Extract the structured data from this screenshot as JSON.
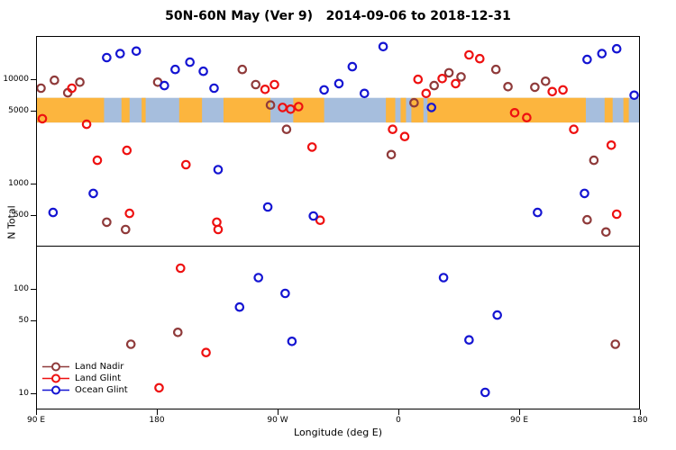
{
  "title": "50N-60N May (Ver 9)   2014-09-06 to 2018-12-31",
  "axes": {
    "y_label": "N Total",
    "x_label": "Longitude (deg E)",
    "x_ticks": [
      {
        "pos": 90,
        "label": "90 E"
      },
      {
        "pos": 180,
        "label": "180"
      },
      {
        "pos": 270,
        "label": "90 W"
      },
      {
        "pos": 360,
        "label": "0"
      },
      {
        "pos": 450,
        "label": "90 E"
      },
      {
        "pos": 540,
        "label": "180"
      }
    ],
    "y_ticks": [
      {
        "value": 10,
        "label": "10"
      },
      {
        "value": 50,
        "label": "50"
      },
      {
        "value": 100,
        "label": "100"
      },
      {
        "value": 500,
        "label": "500"
      },
      {
        "value": 1000,
        "label": "1000"
      },
      {
        "value": 5000,
        "label": "5000"
      },
      {
        "value": 10000,
        "label": "10000"
      }
    ]
  },
  "legend": {
    "items": [
      {
        "label": "Land Nadir",
        "color": "#8f3a3a"
      },
      {
        "label": "Land Glint",
        "color": "#ee1010"
      },
      {
        "label": "Ocean Glint",
        "color": "#1414d2"
      }
    ]
  },
  "chart_data": {
    "type": "scatter",
    "title": "50N-60N May (Ver 9)   2014-09-06 to 2018-12-31",
    "xlabel": "Longitude (deg E)",
    "ylabel": "N Total",
    "x_axis_note": "x axis spans 450 degrees eastward: 90E to 180 to 90W to 0 to 90E to 180; point x given as continuous degrees 90-540",
    "x_range": [
      90,
      540
    ],
    "y_range": [
      7,
      26000
    ],
    "y_scale": "log",
    "grid": false,
    "divider_value": 260,
    "map_band": {
      "value_top": 6800,
      "value_bottom": 3950,
      "ocean_color": "#a6bedd",
      "land_color": "#fcb53e",
      "land_segments": [
        [
          90,
          140
        ],
        [
          153,
          159
        ],
        [
          168,
          171
        ],
        [
          196,
          213
        ],
        [
          229,
          264
        ],
        [
          281,
          304
        ],
        [
          350,
          357
        ],
        [
          361,
          365
        ],
        [
          369,
          378
        ],
        [
          381,
          499
        ],
        [
          513,
          519
        ],
        [
          527,
          531
        ]
      ]
    },
    "series": [
      {
        "name": "Land Nadir",
        "color": "#8f3a3a",
        "points": [
          [
            93,
            8400
          ],
          [
            103,
            10000
          ],
          [
            113,
            7600
          ],
          [
            122,
            9600
          ],
          [
            142,
            440
          ],
          [
            156,
            375
          ],
          [
            180,
            9600
          ],
          [
            243,
            12700
          ],
          [
            253,
            9100
          ],
          [
            264,
            5800
          ],
          [
            276,
            3400
          ],
          [
            354,
            1950
          ],
          [
            371,
            6100
          ],
          [
            386,
            8900
          ],
          [
            397,
            11800
          ],
          [
            406,
            10800
          ],
          [
            432,
            12700
          ],
          [
            441,
            8700
          ],
          [
            461,
            8600
          ],
          [
            469,
            9800
          ],
          [
            500,
            465
          ],
          [
            505,
            1720
          ],
          [
            514,
            355
          ],
          [
            195,
            39
          ],
          [
            160,
            30
          ],
          [
            521,
            30
          ]
        ]
      },
      {
        "name": "Land Glint",
        "color": "#ee1010",
        "points": [
          [
            94,
            4300
          ],
          [
            116,
            8400
          ],
          [
            127,
            3800
          ],
          [
            135,
            1720
          ],
          [
            157,
            2140
          ],
          [
            159,
            535
          ],
          [
            201,
            1560
          ],
          [
            224,
            440
          ],
          [
            225,
            375
          ],
          [
            197,
            160
          ],
          [
            216,
            25
          ],
          [
            181,
            11.5
          ],
          [
            260,
            8200
          ],
          [
            267,
            9100
          ],
          [
            273,
            5500
          ],
          [
            279,
            5300
          ],
          [
            285,
            5600
          ],
          [
            295,
            2300
          ],
          [
            301,
            460
          ],
          [
            355,
            3400
          ],
          [
            364,
            2900
          ],
          [
            374,
            10200
          ],
          [
            380,
            7500
          ],
          [
            392,
            10400
          ],
          [
            402,
            9300
          ],
          [
            412,
            17500
          ],
          [
            420,
            16100
          ],
          [
            446,
            4900
          ],
          [
            455,
            4400
          ],
          [
            474,
            7800
          ],
          [
            482,
            8100
          ],
          [
            490,
            3400
          ],
          [
            518,
            2400
          ],
          [
            522,
            525
          ]
        ]
      },
      {
        "name": "Ocean Glint",
        "color": "#1414d2",
        "points": [
          [
            102,
            545
          ],
          [
            132,
            830
          ],
          [
            142,
            16500
          ],
          [
            152,
            18000
          ],
          [
            164,
            19000
          ],
          [
            185,
            8900
          ],
          [
            193,
            12700
          ],
          [
            204,
            14900
          ],
          [
            214,
            12200
          ],
          [
            222,
            8400
          ],
          [
            225,
            1400
          ],
          [
            262,
            615
          ],
          [
            296,
            505
          ],
          [
            304,
            8100
          ],
          [
            315,
            9300
          ],
          [
            325,
            13500
          ],
          [
            334,
            7500
          ],
          [
            348,
            21000
          ],
          [
            384,
            5500
          ],
          [
            463,
            545
          ],
          [
            498,
            830
          ],
          [
            500,
            15800
          ],
          [
            511,
            18000
          ],
          [
            522,
            20000
          ],
          [
            535,
            7200
          ],
          [
            241,
            68
          ],
          [
            255,
            130
          ],
          [
            275,
            92
          ],
          [
            280,
            32
          ],
          [
            393,
            130
          ],
          [
            412,
            33
          ],
          [
            433,
            57
          ],
          [
            424,
            10.4
          ]
        ]
      }
    ]
  }
}
